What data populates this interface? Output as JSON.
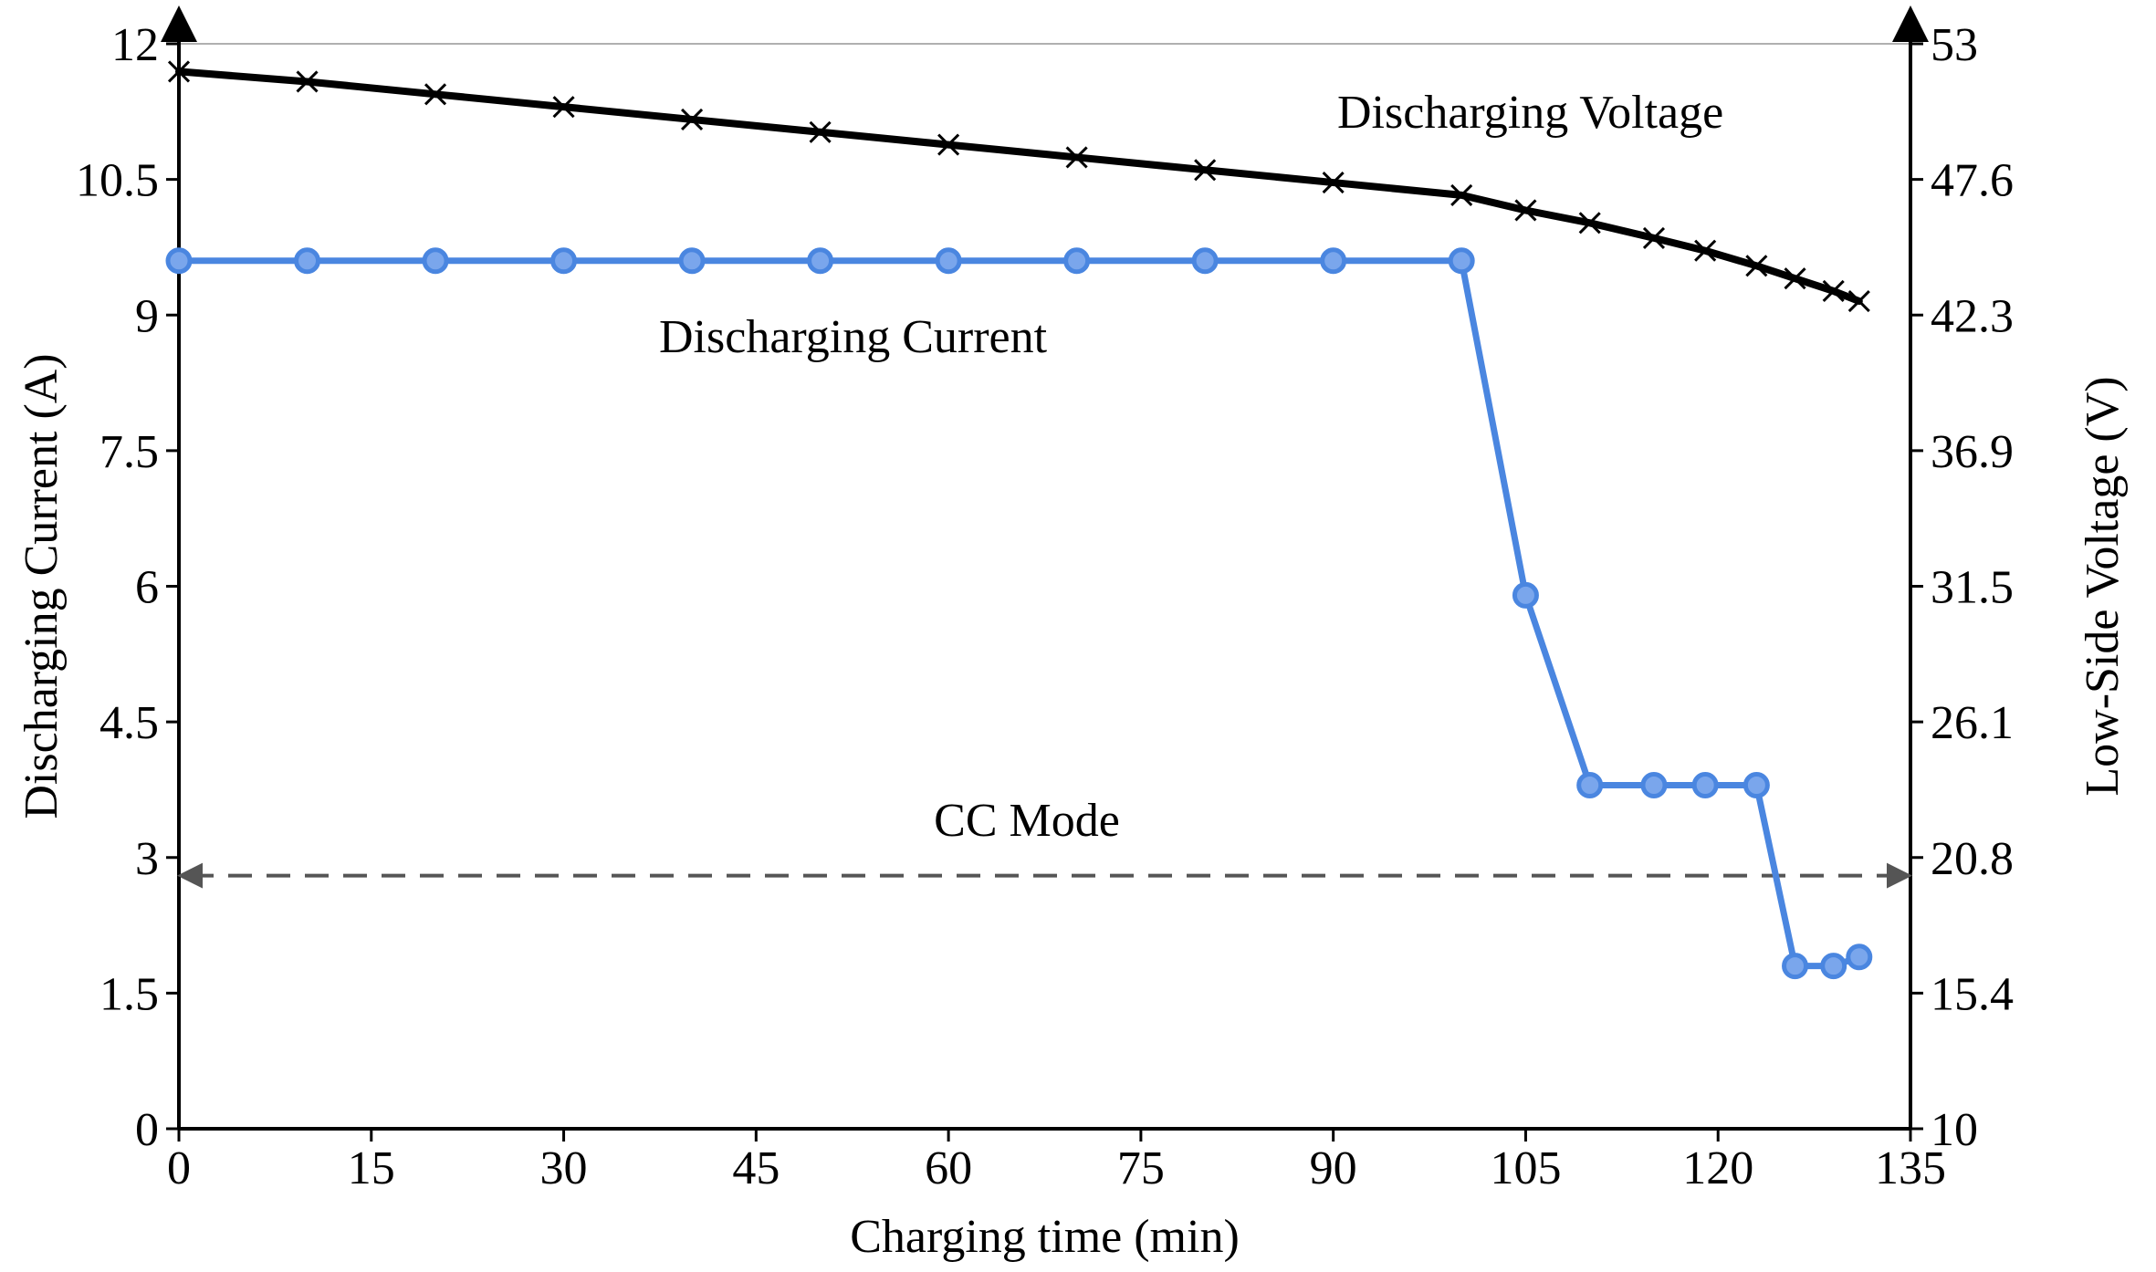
{
  "chart_data": {
    "type": "line",
    "title": "",
    "xlabel": "Charging time (min)",
    "ylabel_left": "Discharging Current (A)",
    "ylabel_right": "Low-Side Voltage (V)",
    "xlim": [
      0,
      135
    ],
    "ylim_left": [
      0,
      12
    ],
    "ylim_right": [
      10,
      53
    ],
    "x_ticks": [
      "0",
      "15",
      "30",
      "45",
      "60",
      "75",
      "90",
      "105",
      "120",
      "135"
    ],
    "y_left_ticks": [
      "0",
      "1.5",
      "3",
      "4.5",
      "6",
      "7.5",
      "9",
      "10.5",
      "12"
    ],
    "y_right_ticks": [
      "10",
      "15.4",
      "20.8",
      "26.1",
      "31.5",
      "36.9",
      "42.3",
      "47.6",
      "53"
    ],
    "grid": false,
    "series": [
      {
        "name": "Discharging Voltage",
        "axis": "right",
        "color": "#000000",
        "marker": "x",
        "x": [
          0,
          10,
          20,
          30,
          40,
          50,
          60,
          70,
          80,
          90,
          100,
          105,
          110,
          115,
          119,
          123,
          126,
          129,
          131
        ],
        "values": [
          51.9,
          51.5,
          51.0,
          50.5,
          50.0,
          49.5,
          49.0,
          48.5,
          48.0,
          47.5,
          47.0,
          46.4,
          45.9,
          45.3,
          44.8,
          44.2,
          43.7,
          43.2,
          42.8
        ]
      },
      {
        "name": "Discharging Current",
        "axis": "left",
        "color": "#4a86e0",
        "marker": "o",
        "x": [
          0,
          10,
          20,
          30,
          40,
          50,
          60,
          70,
          80,
          90,
          100,
          105,
          110,
          115,
          119,
          123,
          126,
          129,
          131
        ],
        "values": [
          9.6,
          9.6,
          9.6,
          9.6,
          9.6,
          9.6,
          9.6,
          9.6,
          9.6,
          9.6,
          9.6,
          5.9,
          3.8,
          3.8,
          3.8,
          3.8,
          1.8,
          1.8,
          1.9
        ]
      }
    ],
    "annotations": {
      "voltage_label": "Discharging Voltage",
      "current_label": "Discharging Current",
      "mode_label": "CC Mode",
      "mode_arrow_level_left_axis": 2.8,
      "top_reference_line_left_axis": 12
    }
  }
}
